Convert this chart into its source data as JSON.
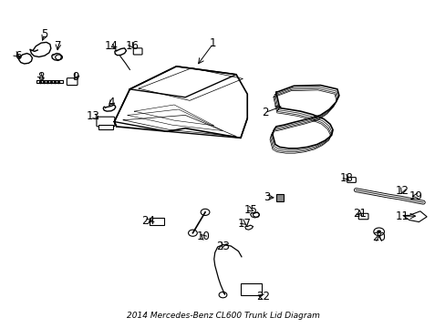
{
  "title": "2014 Mercedes-Benz CL600 Trunk Lid Diagram",
  "bg_color": "#ffffff",
  "fig_width": 4.89,
  "fig_height": 3.6,
  "dpi": 100,
  "line_color": "#000000",
  "label_fontsize": 8.5,
  "trunk_lid_outer": {
    "x": [
      0.285,
      0.31,
      0.42,
      0.52,
      0.555,
      0.55,
      0.545,
      0.49,
      0.38,
      0.265,
      0.23,
      0.235,
      0.285
    ],
    "y": [
      0.59,
      0.73,
      0.82,
      0.79,
      0.72,
      0.65,
      0.58,
      0.53,
      0.52,
      0.54,
      0.57,
      0.58,
      0.59
    ]
  },
  "trunk_lid_top_face": {
    "x": [
      0.285,
      0.31,
      0.42,
      0.52,
      0.555,
      0.51,
      0.395,
      0.28,
      0.285
    ],
    "y": [
      0.59,
      0.73,
      0.82,
      0.79,
      0.72,
      0.72,
      0.79,
      0.72,
      0.59
    ]
  },
  "trunk_lid_front_face": {
    "x": [
      0.285,
      0.51,
      0.545,
      0.55,
      0.49,
      0.38,
      0.265,
      0.23,
      0.235,
      0.285
    ],
    "y": [
      0.59,
      0.72,
      0.65,
      0.58,
      0.53,
      0.52,
      0.54,
      0.57,
      0.58,
      0.59
    ]
  },
  "seal_outer": {
    "x": [
      0.618,
      0.628,
      0.64,
      0.655,
      0.672,
      0.688,
      0.7,
      0.715,
      0.728,
      0.738,
      0.742,
      0.738,
      0.728,
      0.715,
      0.7,
      0.688,
      0.672,
      0.655,
      0.64,
      0.63,
      0.625,
      0.622,
      0.618
    ],
    "y": [
      0.58,
      0.61,
      0.64,
      0.665,
      0.685,
      0.7,
      0.71,
      0.718,
      0.718,
      0.71,
      0.695,
      0.68,
      0.672,
      0.665,
      0.66,
      0.655,
      0.645,
      0.63,
      0.61,
      0.592,
      0.578,
      0.57,
      0.58
    ]
  }
}
